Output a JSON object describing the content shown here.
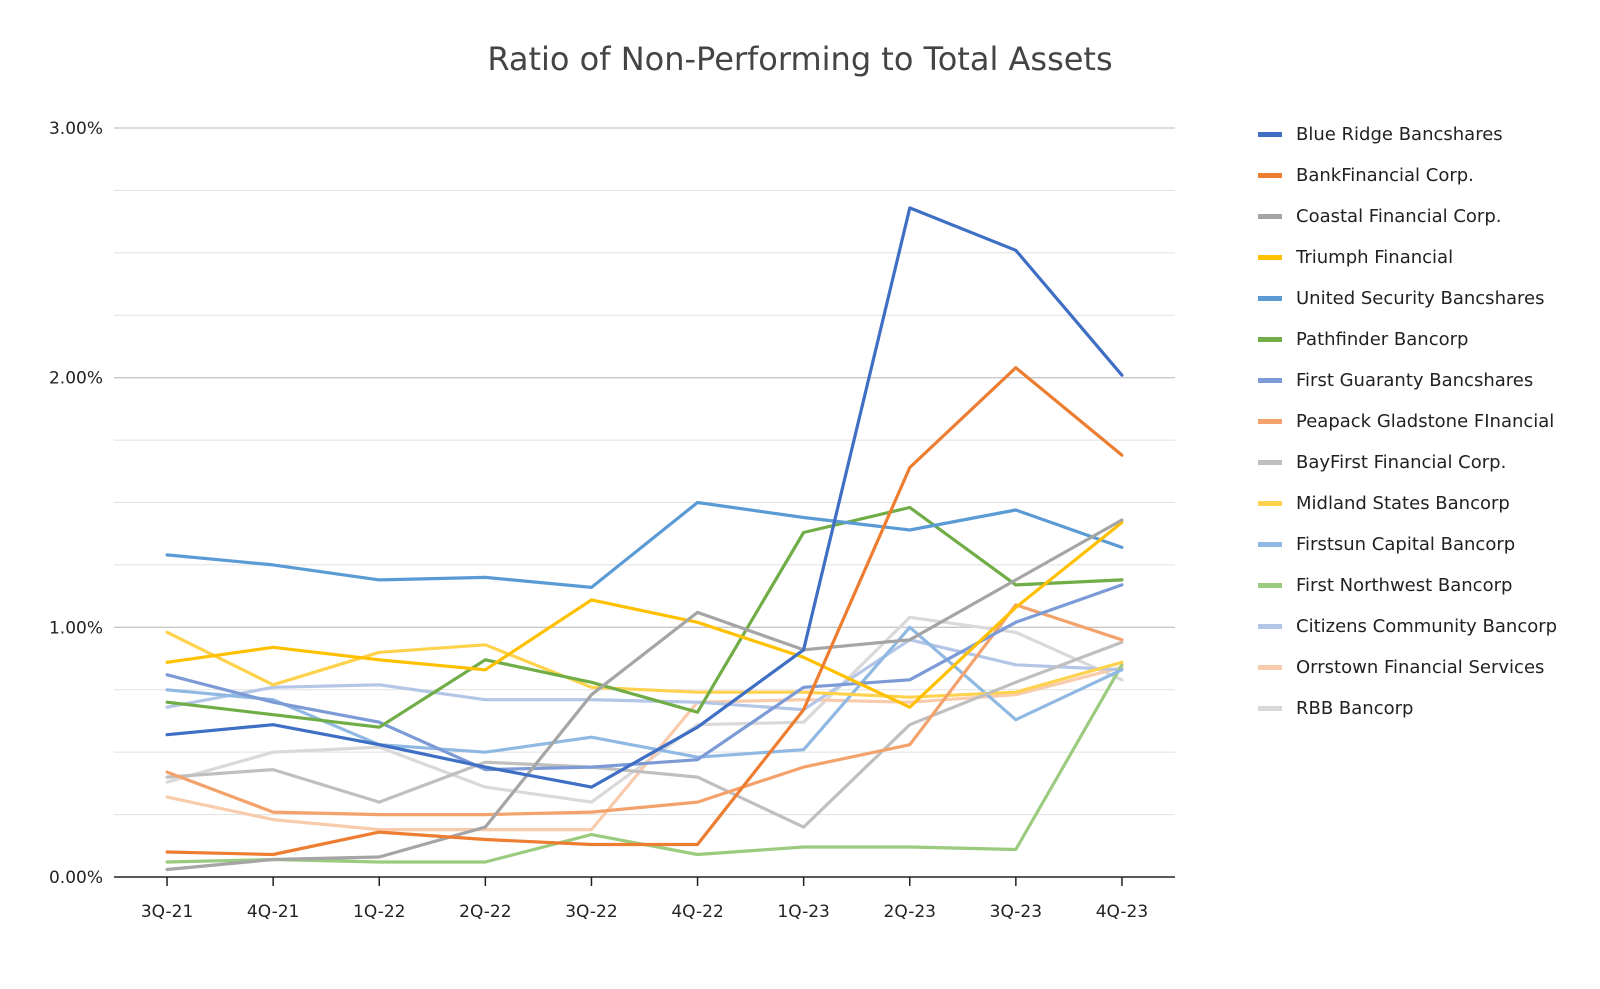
{
  "chart_data": {
    "type": "line",
    "title": "Ratio of Non-Performing to Total Assets",
    "xlabel": "",
    "ylabel": "",
    "ylim": [
      0,
      3.0
    ],
    "y_unit": "%",
    "y_ticks": [
      "0.00%",
      "1.00%",
      "2.00%",
      "3.00%"
    ],
    "grid": true,
    "legend_position": "right",
    "categories": [
      "3Q-21",
      "4Q-21",
      "1Q-22",
      "2Q-22",
      "3Q-22",
      "4Q-22",
      "1Q-23",
      "2Q-23",
      "3Q-23",
      "4Q-23"
    ],
    "series": [
      {
        "name": "Blue Ridge Bancshares",
        "color": "#3f6fc4",
        "values": [
          0.57,
          0.61,
          0.53,
          0.44,
          0.36,
          0.6,
          0.91,
          2.68,
          2.51,
          2.01
        ]
      },
      {
        "name": "BankFinancial Corp.",
        "color": "#ed7d31",
        "values": [
          0.1,
          0.09,
          0.18,
          0.15,
          0.13,
          0.13,
          0.67,
          1.64,
          2.04,
          1.69
        ]
      },
      {
        "name": "Coastal Financial Corp.",
        "color": "#a5a5a5",
        "values": [
          0.03,
          0.07,
          0.08,
          0.2,
          0.73,
          1.06,
          0.91,
          0.95,
          1.19,
          1.43
        ]
      },
      {
        "name": "Triumph Financial",
        "color": "#ffc000",
        "values": [
          0.86,
          0.92,
          0.87,
          0.83,
          1.11,
          1.02,
          0.88,
          0.68,
          1.08,
          1.42
        ]
      },
      {
        "name": "United Security Bancshares",
        "color": "#5b9bd5",
        "values": [
          1.29,
          1.25,
          1.19,
          1.2,
          1.16,
          1.5,
          1.44,
          1.39,
          1.47,
          1.32
        ]
      },
      {
        "name": "Pathfinder Bancorp",
        "color": "#70ad47",
        "values": [
          0.7,
          0.65,
          0.6,
          0.87,
          0.78,
          0.66,
          1.38,
          1.48,
          1.17,
          1.19
        ]
      },
      {
        "name": "First Guaranty Bancshares",
        "color": "#7b9ad6",
        "values": [
          0.81,
          0.7,
          0.62,
          0.43,
          0.44,
          0.47,
          0.76,
          0.79,
          1.02,
          1.17
        ]
      },
      {
        "name": "Peapack Gladstone FInancial",
        "color": "#f4a26c",
        "values": [
          0.42,
          0.26,
          0.25,
          0.25,
          0.26,
          0.3,
          0.44,
          0.53,
          1.09,
          0.95
        ]
      },
      {
        "name": "BayFirst Financial Corp.",
        "color": "#bfbfbf",
        "values": [
          0.4,
          0.43,
          0.3,
          0.46,
          0.44,
          0.4,
          0.2,
          0.61,
          0.78,
          0.94
        ]
      },
      {
        "name": "Midland States Bancorp",
        "color": "#ffd24d",
        "values": [
          0.98,
          0.77,
          0.9,
          0.93,
          0.76,
          0.74,
          0.74,
          0.72,
          0.74,
          0.86
        ]
      },
      {
        "name": "Firstsun Capital Bancorp",
        "color": "#8fb8e3",
        "values": [
          0.75,
          0.71,
          0.53,
          0.5,
          0.56,
          0.48,
          0.51,
          1.0,
          0.63,
          0.83
        ]
      },
      {
        "name": "First Northwest Bancorp",
        "color": "#9bcb7e",
        "values": [
          0.06,
          0.07,
          0.06,
          0.06,
          0.17,
          0.09,
          0.12,
          0.12,
          0.11,
          0.85
        ]
      },
      {
        "name": "Citizens Community Bancorp",
        "color": "#b4c6e7",
        "values": [
          0.68,
          0.76,
          0.77,
          0.71,
          0.71,
          0.7,
          0.67,
          0.95,
          0.85,
          0.83
        ]
      },
      {
        "name": "Orrstown Financial Services",
        "color": "#f8cbad",
        "values": [
          0.32,
          0.23,
          0.19,
          0.19,
          0.19,
          0.7,
          0.71,
          0.7,
          0.73,
          0.84
        ]
      },
      {
        "name": "RBB Bancorp",
        "color": "#d9d9d9",
        "values": [
          0.38,
          0.5,
          0.52,
          0.36,
          0.3,
          0.61,
          0.62,
          1.04,
          0.98,
          0.79
        ]
      }
    ]
  }
}
